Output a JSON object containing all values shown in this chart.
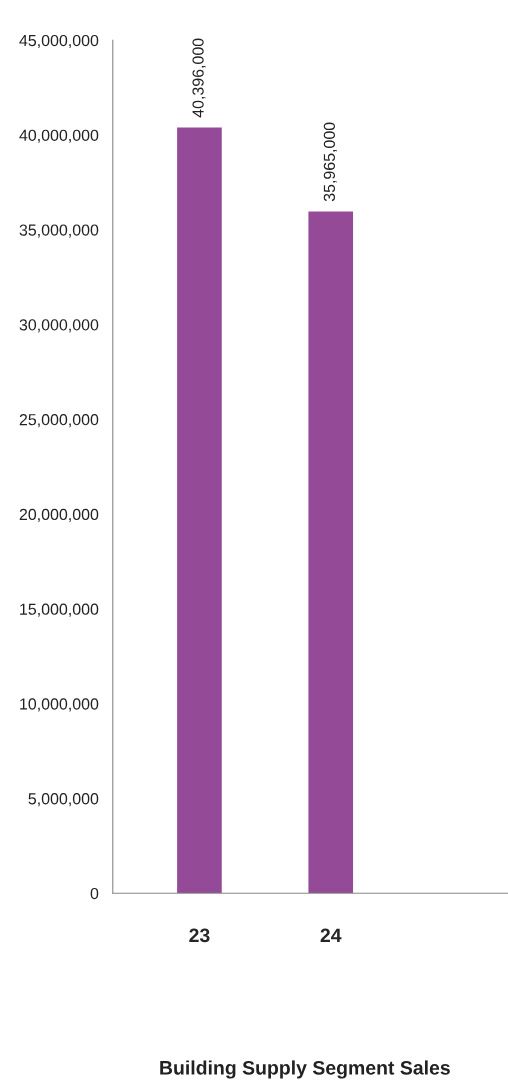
{
  "chart_data": {
    "type": "bar",
    "annotations": [
      "Building Supply Segment Sales"
    ],
    "categories": [
      "23",
      "24"
    ],
    "values": [
      40396000,
      35965000
    ],
    "color": "#954a97",
    "ylim": [
      0,
      45000000
    ],
    "yticks": [
      {
        "value": 0,
        "label": "0"
      },
      {
        "value": 5000000,
        "label": "5,000,000"
      },
      {
        "value": 10000000,
        "label": "10,000,000"
      },
      {
        "value": 15000000,
        "label": "15,000,000"
      },
      {
        "value": 20000000,
        "label": "20,000,000"
      },
      {
        "value": 25000000,
        "label": "25,000,000"
      },
      {
        "value": 30000000,
        "label": "30,000,000"
      },
      {
        "value": 35000000,
        "label": "35,000,000"
      },
      {
        "value": 40000000,
        "label": "40,000,000"
      },
      {
        "value": 45000000,
        "label": "45,000,000"
      }
    ],
    "value_labels": [
      "40,396,000",
      "35,965,000"
    ],
    "grid": false,
    "legend": false
  }
}
